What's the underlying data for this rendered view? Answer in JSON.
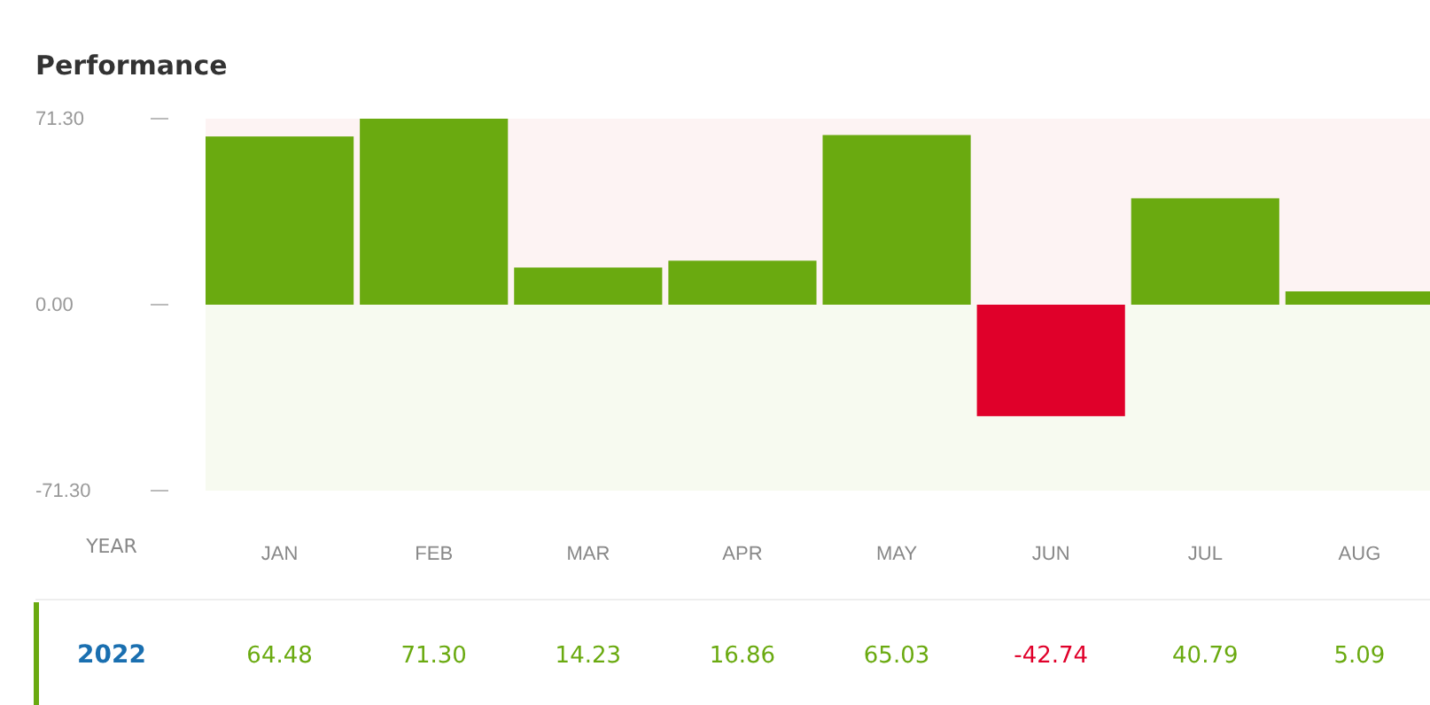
{
  "chart_data": {
    "type": "bar",
    "title": "Performance",
    "xlabel": "YEAR",
    "categories": [
      "JAN",
      "FEB",
      "MAR",
      "APR",
      "MAY",
      "JUN",
      "JUL",
      "AUG"
    ],
    "series": [
      {
        "name": "2022",
        "color": "#6aaa10",
        "colors": [
          "#6aaa10",
          "#6aaa10",
          "#6aaa10",
          "#6aaa10",
          "#6aaa10",
          "#e0002a",
          "#6aaa10",
          "#6aaa10"
        ],
        "values": [
          64.48,
          71.3,
          14.23,
          16.86,
          65.03,
          -42.74,
          40.79,
          5.09
        ],
        "value_labels": [
          "64.48",
          "71.30",
          "14.23",
          "16.86",
          "65.03",
          "-42.74",
          "40.79",
          "5.09"
        ]
      }
    ],
    "ylim": [
      -71.3,
      71.3
    ],
    "yticks": [
      {
        "value": 71.3,
        "label": "71.30"
      },
      {
        "value": 0,
        "label": "0.00"
      },
      {
        "value": -71.3,
        "label": "-71.30"
      }
    ],
    "bands": [
      {
        "axis": "y",
        "from": 0,
        "to": 71.3,
        "color": "#fdf3f3"
      },
      {
        "axis": "y",
        "from": -71.3,
        "to": 0,
        "color": "#f7faf0"
      }
    ],
    "grid": false
  }
}
